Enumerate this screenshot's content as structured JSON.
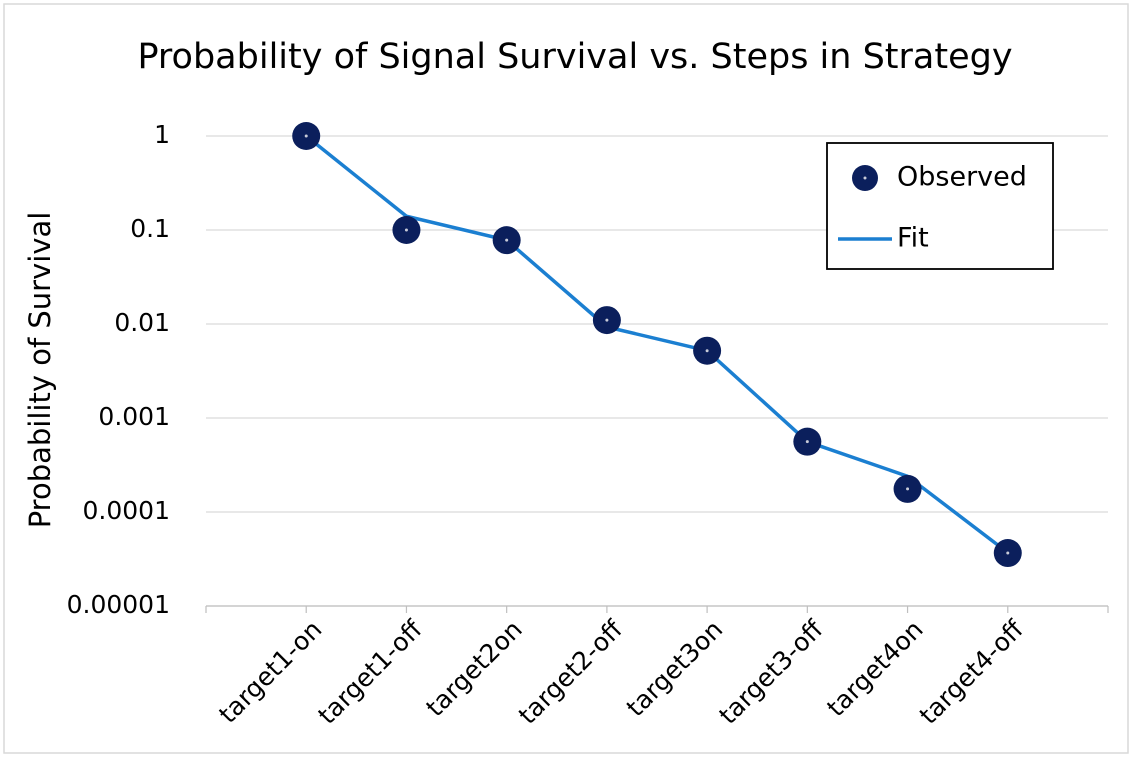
{
  "chart_data": {
    "type": "line",
    "title": "Probability of Signal Survival vs. Steps in Strategy",
    "y_label": "Probability of Survival",
    "categories": [
      "target1-on",
      "target1-off",
      "target2on",
      "target2-off",
      "target3on",
      "target3-off",
      "target4on",
      "target4-off"
    ],
    "series": [
      {
        "name": "Observed",
        "kind": "scatter",
        "color": "#0b1f5c",
        "values": [
          1,
          0.1,
          0.078,
          0.011,
          0.0052,
          0.00056,
          0.000176,
          3.66e-05
        ]
      },
      {
        "name": "Fit",
        "kind": "line",
        "color": "#1b7fd1",
        "values": [
          1,
          0.14,
          0.078,
          0.0093,
          0.0052,
          0.00056,
          0.00024,
          3.7e-05
        ]
      }
    ],
    "y_scale": "log",
    "ylim": [
      1e-05,
      1
    ],
    "yticks": [
      1,
      0.1,
      0.01,
      0.001,
      0.0001,
      1e-05
    ],
    "grid": true,
    "legend_position": "upper right"
  }
}
